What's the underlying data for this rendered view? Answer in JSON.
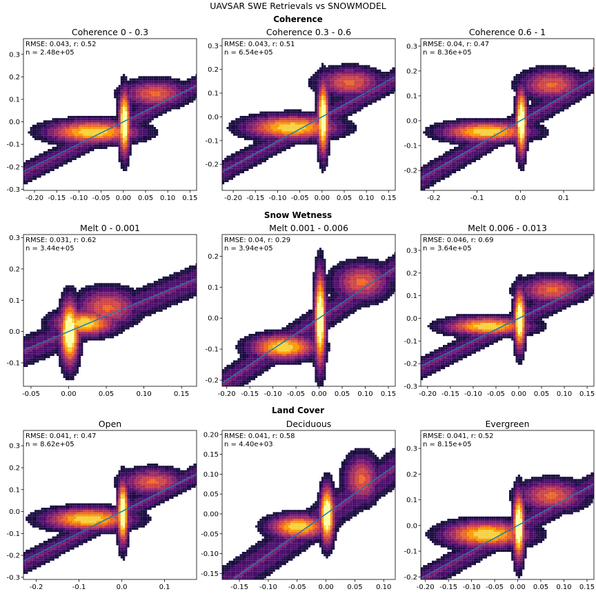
{
  "suptitle": "UAVSAR SWE Retrievals vs SNOWMODEL",
  "sections": [
    "Coherence",
    "Snow Wetness",
    "Land Cover"
  ],
  "colors": {
    "fit_line": "#1f77b4",
    "colormap": "inferno",
    "background": "#ffffff"
  },
  "chart_data": [
    {
      "type": "heatmap",
      "title": "Coherence 0 - 0.3",
      "stats": "RMSE: 0.043, r: 0.52",
      "n": "n = 2.48e+05",
      "xlim": [
        -0.225,
        0.165
      ],
      "ylim": [
        -0.305,
        0.37
      ],
      "xticks": [
        -0.2,
        -0.15,
        -0.1,
        -0.05,
        0.0,
        0.05,
        0.1,
        0.15
      ],
      "xtick_labels": [
        "-0.20",
        "-0.15",
        "-0.10",
        "-0.05",
        "0.00",
        "0.05",
        "0.10",
        "0.15"
      ],
      "yticks": [
        -0.3,
        -0.2,
        -0.1,
        0.0,
        0.1,
        0.2,
        0.3
      ],
      "ytick_labels": [
        "-0.3",
        "-0.2",
        "-0.1",
        "0.0",
        "0.1",
        "0.2",
        "0.3"
      ],
      "fit": {
        "slope": 0.98,
        "intercept": -0.0
      }
    },
    {
      "type": "heatmap",
      "title": "Coherence 0.3 - 0.6",
      "stats": "RMSE: 0.043, r: 0.51",
      "n": "n = 6.54e+05",
      "xlim": [
        -0.225,
        0.165
      ],
      "ylim": [
        -0.31,
        0.33
      ],
      "xticks": [
        -0.2,
        -0.15,
        -0.1,
        -0.05,
        0.0,
        0.05,
        0.1,
        0.15
      ],
      "xtick_labels": [
        "-0.20",
        "-0.15",
        "-0.10",
        "-0.05",
        "0.00",
        "0.05",
        "0.10",
        "0.15"
      ],
      "yticks": [
        -0.2,
        -0.1,
        0.0,
        0.1,
        0.2,
        0.3
      ],
      "ytick_labels": [
        "-0.2",
        "-0.1",
        "0.0",
        "0.1",
        "0.2",
        "0.3"
      ],
      "fit": {
        "slope": 1.03,
        "intercept": 0.0
      }
    },
    {
      "type": "heatmap",
      "title": "Coherence 0.6 - 1",
      "stats": "RMSE: 0.04, r: 0.47",
      "n": "n = 8.36e+05",
      "xlim": [
        -0.23,
        0.17
      ],
      "ylim": [
        -0.28,
        0.33
      ],
      "xticks": [
        -0.2,
        -0.1,
        0.0,
        0.1
      ],
      "xtick_labels": [
        "-0.2",
        "-0.1",
        "0.0",
        "0.1"
      ],
      "yticks": [
        -0.2,
        -0.1,
        0.0,
        0.1,
        0.2,
        0.3
      ],
      "ytick_labels": [
        "-0.2",
        "-0.1",
        "0.0",
        "0.1",
        "0.2",
        "0.3"
      ],
      "fit": {
        "slope": 1.0,
        "intercept": 0.0
      }
    },
    {
      "type": "heatmap",
      "title": "Melt 0 - 0.001",
      "stats": "RMSE: 0.031, r: 0.62",
      "n": "n = 3.44e+05",
      "xlim": [
        -0.06,
        0.17
      ],
      "ylim": [
        -0.175,
        0.31
      ],
      "xticks": [
        -0.05,
        0.0,
        0.05,
        0.1,
        0.15
      ],
      "xtick_labels": [
        "-0.05",
        "0.00",
        "0.05",
        "0.10",
        "0.15"
      ],
      "yticks": [
        -0.1,
        0.0,
        0.1,
        0.2,
        0.3
      ],
      "ytick_labels": [
        "-0.1",
        "0.0",
        "0.1",
        "0.2",
        "0.3"
      ],
      "fit": {
        "slope": 1.0,
        "intercept": 0.0
      }
    },
    {
      "type": "heatmap",
      "title": "Melt 0.001 - 0.006",
      "stats": "RMSE: 0.04, r: 0.29",
      "n": "n = 3.94e+05",
      "xlim": [
        -0.21,
        0.165
      ],
      "ylim": [
        -0.22,
        0.27
      ],
      "xticks": [
        -0.2,
        -0.15,
        -0.1,
        -0.05,
        0.0,
        0.05,
        0.1,
        0.15
      ],
      "xtick_labels": [
        "-0.20",
        "-0.15",
        "-0.10",
        "-0.05",
        "0.00",
        "0.05",
        "0.10",
        "0.15"
      ],
      "yticks": [
        -0.2,
        -0.1,
        0.0,
        0.1,
        0.2
      ],
      "ytick_labels": [
        "-0.2",
        "-0.1",
        "0.0",
        "0.1",
        "0.2"
      ],
      "fit": {
        "slope": 1.0,
        "intercept": 0.0
      }
    },
    {
      "type": "heatmap",
      "title": "Melt 0.006 - 0.013",
      "stats": "RMSE: 0.046, r: 0.69",
      "n": "n = 3.64e+05",
      "xlim": [
        -0.215,
        0.165
      ],
      "ylim": [
        -0.3,
        0.37
      ],
      "xticks": [
        -0.2,
        -0.15,
        -0.1,
        -0.05,
        0.0,
        0.05,
        0.1,
        0.15
      ],
      "xtick_labels": [
        "-0.20",
        "-0.15",
        "-0.10",
        "-0.05",
        "0.00",
        "0.05",
        "0.10",
        "0.15"
      ],
      "yticks": [
        -0.3,
        -0.2,
        -0.1,
        0.0,
        0.1,
        0.2,
        0.3
      ],
      "ytick_labels": [
        "-0.3",
        "-0.2",
        "-0.1",
        "0.0",
        "0.1",
        "0.2",
        "0.3"
      ],
      "fit": {
        "slope": 0.98,
        "intercept": 0.0
      }
    },
    {
      "type": "heatmap",
      "title": "Open",
      "stats": "RMSE: 0.041, r: 0.47",
      "n": "n = 8.62e+05",
      "xlim": [
        -0.23,
        0.175
      ],
      "ylim": [
        -0.31,
        0.37
      ],
      "xticks": [
        -0.2,
        -0.1,
        0.0,
        0.1
      ],
      "xtick_labels": [
        "-0.2",
        "-0.1",
        "0.0",
        "0.1"
      ],
      "yticks": [
        -0.3,
        -0.2,
        -0.1,
        0.0,
        0.1,
        0.2,
        0.3
      ],
      "ytick_labels": [
        "-0.3",
        "-0.2",
        "-0.1",
        "0.0",
        "0.1",
        "0.2",
        "0.3"
      ],
      "fit": {
        "slope": 0.98,
        "intercept": 0.0
      }
    },
    {
      "type": "heatmap",
      "title": "Deciduous",
      "stats": "RMSE: 0.041, r: 0.58",
      "n": "n = 4.40e+03",
      "xlim": [
        -0.18,
        0.12
      ],
      "ylim": [
        -0.165,
        0.21
      ],
      "xticks": [
        -0.15,
        -0.1,
        -0.05,
        0.0,
        0.05,
        0.1
      ],
      "xtick_labels": [
        "-0.15",
        "-0.10",
        "-0.05",
        "0.00",
        "0.05",
        "0.10"
      ],
      "yticks": [
        -0.15,
        -0.1,
        -0.05,
        0.0,
        0.05,
        0.1,
        0.15,
        0.2
      ],
      "ytick_labels": [
        "-0.15",
        "-0.10",
        "-0.05",
        "0.00",
        "0.05",
        "0.10",
        "0.15",
        "0.20"
      ],
      "fit": {
        "slope": 1.02,
        "intercept": 0.0
      }
    },
    {
      "type": "heatmap",
      "title": "Evergreen",
      "stats": "RMSE: 0.041, r: 0.52",
      "n": "n = 8.15e+05",
      "xlim": [
        -0.21,
        0.165
      ],
      "ylim": [
        -0.21,
        0.37
      ],
      "xticks": [
        -0.2,
        -0.15,
        -0.1,
        -0.05,
        0.0,
        0.05,
        0.1,
        0.15
      ],
      "xtick_labels": [
        "-0.20",
        "-0.15",
        "-0.10",
        "-0.05",
        "0.00",
        "0.05",
        "0.10",
        "0.15"
      ],
      "yticks": [
        -0.2,
        -0.1,
        0.0,
        0.1,
        0.2,
        0.3
      ],
      "ytick_labels": [
        "-0.2",
        "-0.1",
        "0.0",
        "0.1",
        "0.2",
        "0.3"
      ],
      "fit": {
        "slope": 0.98,
        "intercept": 0.0
      }
    }
  ]
}
